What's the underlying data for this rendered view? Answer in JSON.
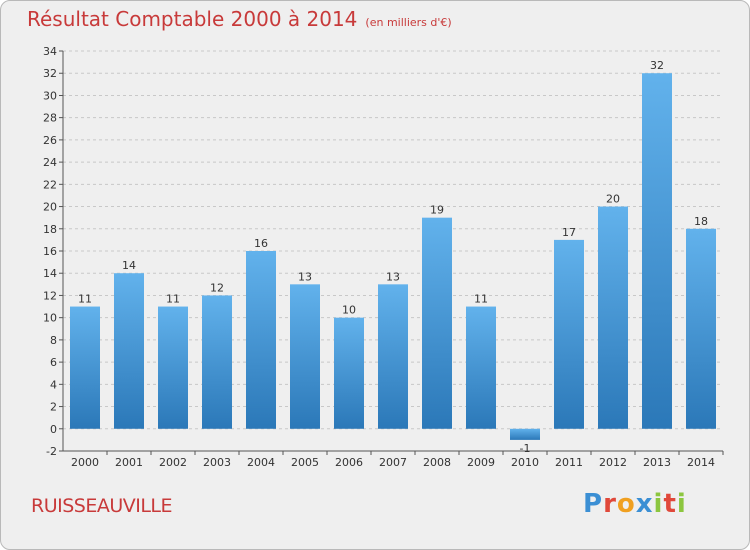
{
  "header": {
    "title": "Résultat Comptable 2000 à 2014",
    "subtitle": "(en milliers d'€)"
  },
  "footer": {
    "commune": "RUISSEAUVILLE",
    "brand": [
      "P",
      "r",
      "o",
      "x",
      "i",
      "t",
      "i"
    ],
    "brand_colors": [
      "#3b8fd4",
      "#e0483a",
      "#f0a020",
      "#3b8fd4",
      "#8cc63f",
      "#e0483a",
      "#8cc63f"
    ]
  },
  "chart_data": {
    "type": "bar",
    "title": "Résultat Comptable 2000 à 2014",
    "subtitle": "(en milliers d'€)",
    "categories": [
      "2000",
      "2001",
      "2002",
      "2003",
      "2004",
      "2005",
      "2006",
      "2007",
      "2008",
      "2009",
      "2010",
      "2011",
      "2012",
      "2013",
      "2014"
    ],
    "values": [
      11,
      14,
      11,
      12,
      16,
      13,
      10,
      13,
      19,
      11,
      -1,
      17,
      20,
      32,
      18
    ],
    "ylim": [
      -2,
      34
    ],
    "yticks": [
      -2,
      0,
      2,
      4,
      6,
      8,
      10,
      12,
      14,
      16,
      18,
      20,
      22,
      24,
      26,
      28,
      30,
      32,
      34
    ],
    "grid": true,
    "bar_color_top": "#62b2ec",
    "bar_color_bottom": "#2b78b8"
  }
}
